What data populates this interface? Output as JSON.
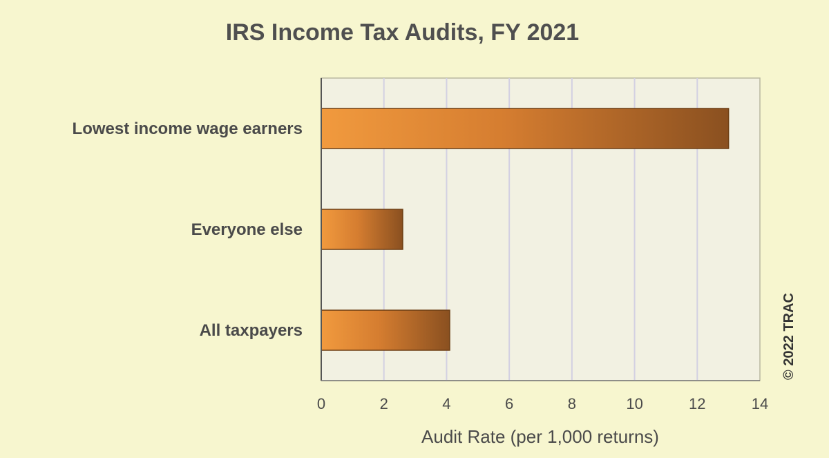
{
  "chart_data": {
    "type": "bar",
    "orientation": "horizontal",
    "title": "IRS Income Tax Audits, FY 2021",
    "categories": [
      "Lowest income wage earners",
      "Everyone else",
      "All taxpayers"
    ],
    "values": [
      13.0,
      2.6,
      4.1
    ],
    "xlabel": "Audit Rate (per 1,000 returns)",
    "ylabel": "",
    "xlim": [
      0,
      14
    ],
    "xticks": [
      "0",
      "2",
      "4",
      "6",
      "8",
      "10",
      "12",
      "14"
    ],
    "grid": true,
    "colors": {
      "background": "#f7f6cf",
      "plot_area": "#f2f1e2",
      "bar_light": "#f19a3e",
      "bar_dark": "#8a5020",
      "gridline": "#d3d0e2"
    }
  },
  "credit": "© 2022 TRAC"
}
